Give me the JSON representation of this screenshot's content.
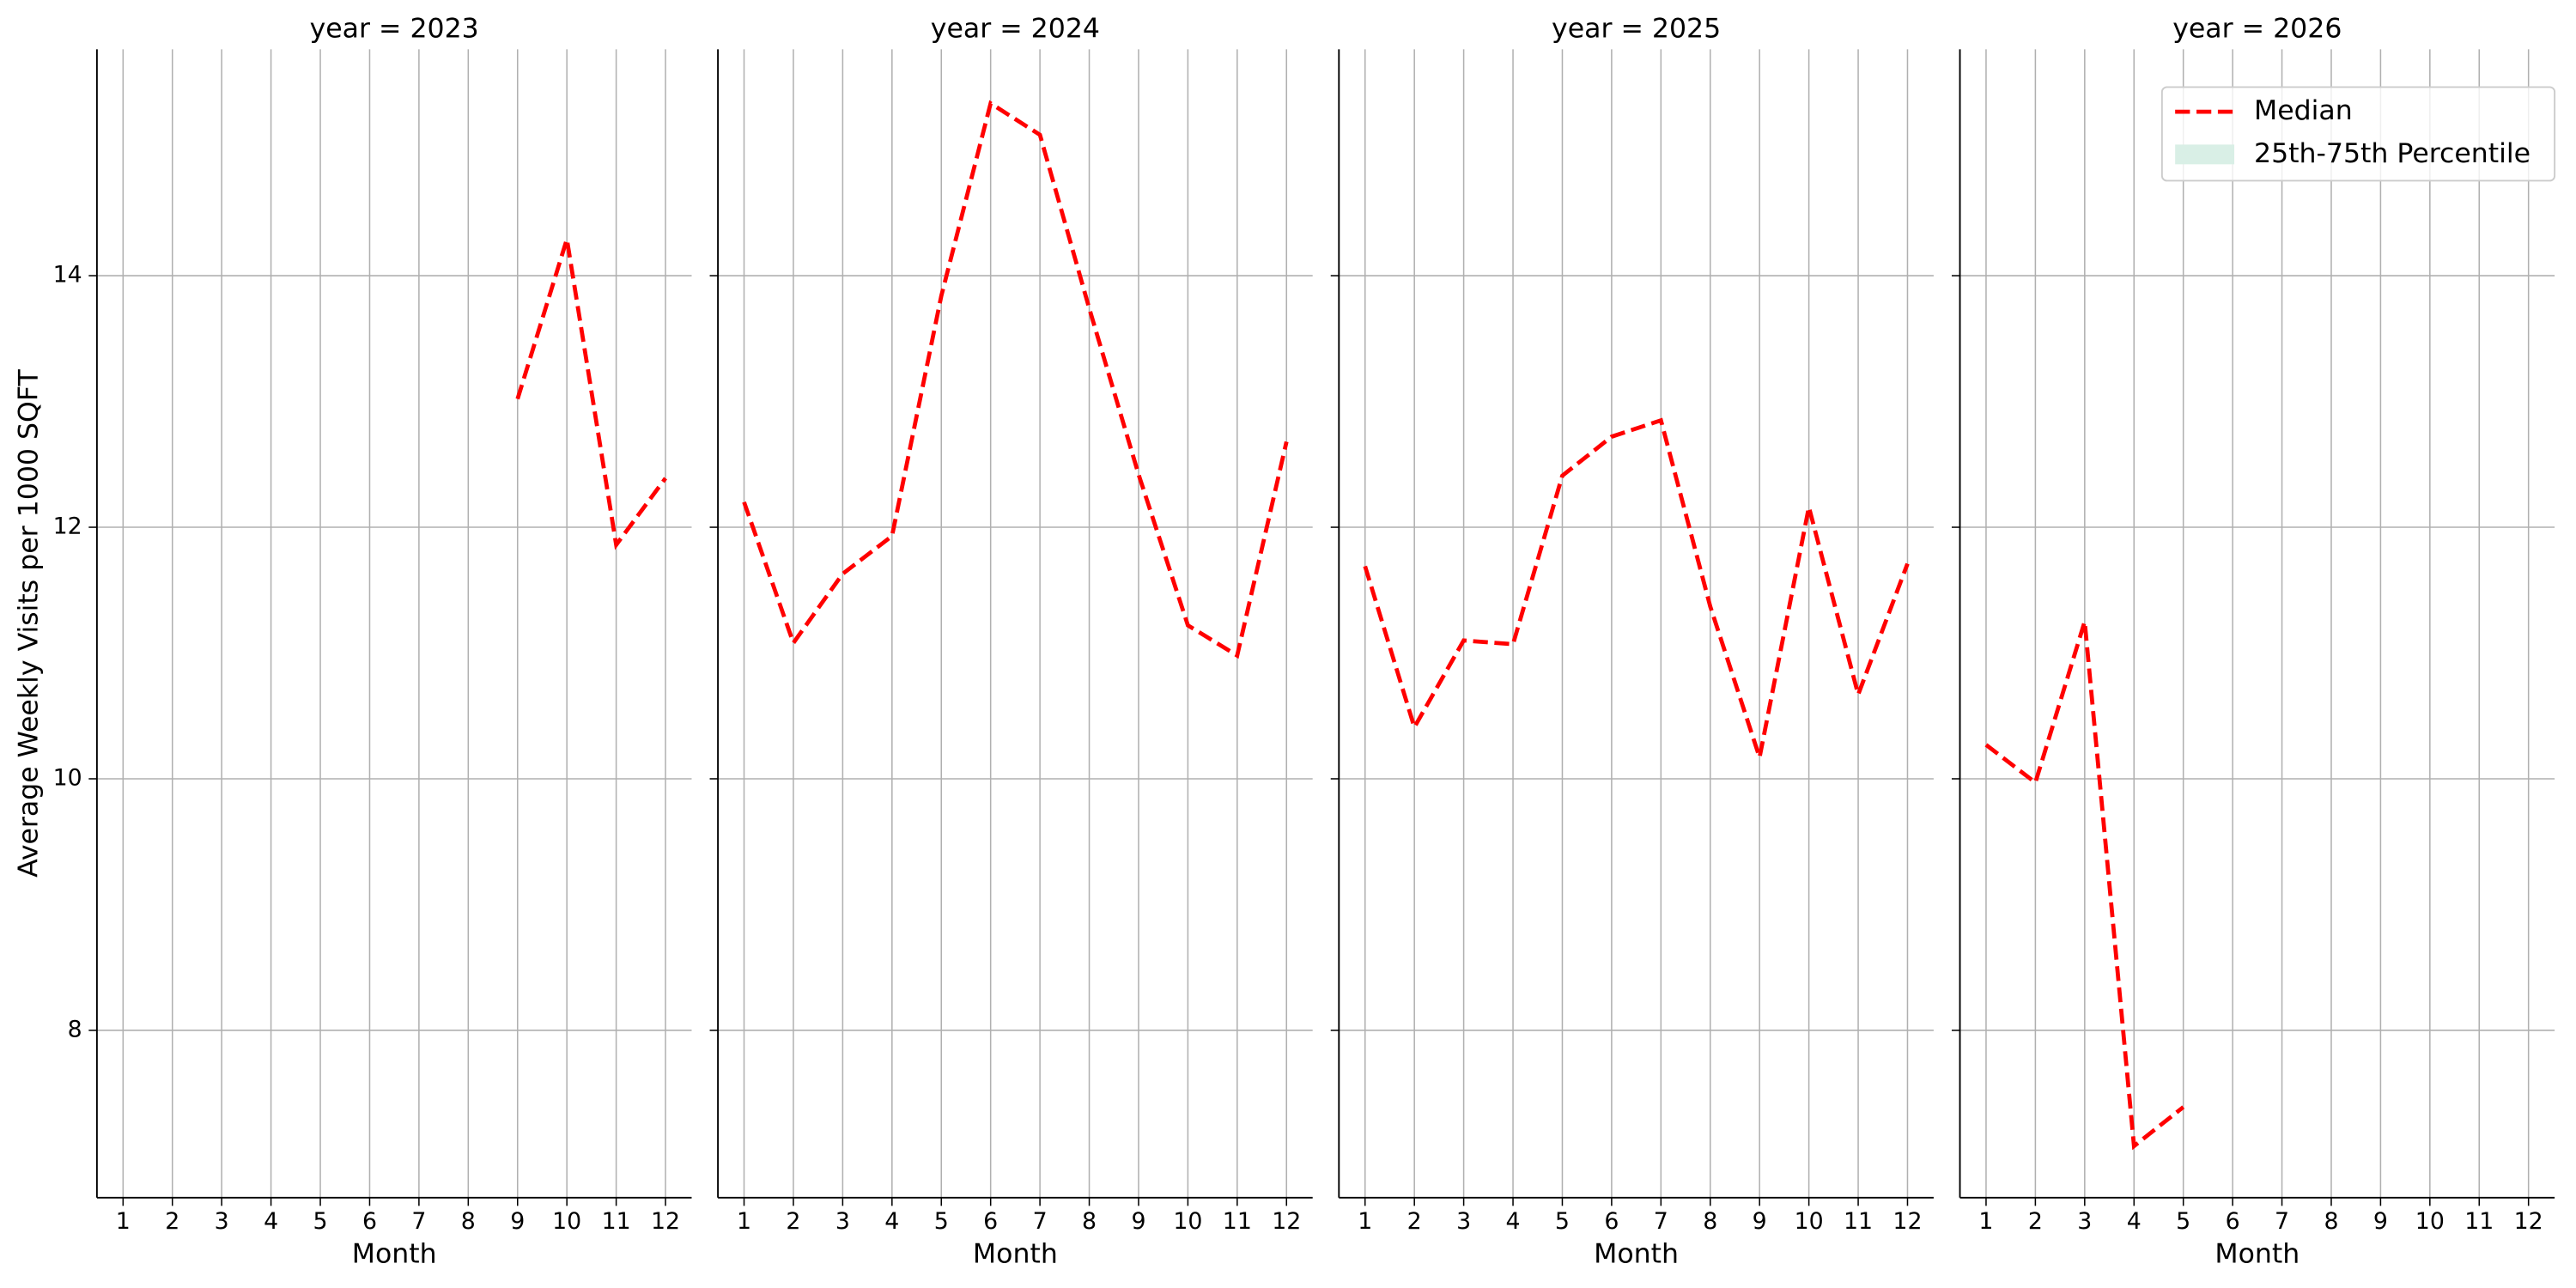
{
  "chart_data": [
    {
      "type": "line",
      "title": "year = 2023",
      "xlabel": "Month",
      "ylabel": "Average Weekly Visits per 1000 SQFT",
      "x": [
        1,
        2,
        3,
        4,
        5,
        6,
        7,
        8,
        9,
        10,
        11,
        12
      ],
      "series": [
        {
          "name": "Median",
          "color": "#ff0000",
          "values": [
            null,
            null,
            null,
            null,
            null,
            null,
            null,
            null,
            13.02,
            14.29,
            11.86,
            12.39
          ]
        }
      ],
      "xlim": [
        0.47,
        12.53
      ],
      "xticks": [
        1,
        2,
        3,
        4,
        5,
        6,
        7,
        8,
        9,
        10,
        11,
        12
      ],
      "ylim": [
        6.67,
        15.8
      ],
      "yticks": [
        8,
        10,
        12,
        14
      ],
      "grid": true
    },
    {
      "type": "line",
      "title": "year = 2024",
      "xlabel": "Month",
      "x": [
        1,
        2,
        3,
        4,
        5,
        6,
        7,
        8,
        9,
        10,
        11,
        12
      ],
      "series": [
        {
          "name": "Median",
          "color": "#ff0000",
          "values": [
            12.2,
            11.08,
            11.63,
            11.93,
            13.84,
            15.37,
            15.12,
            13.74,
            12.42,
            11.22,
            10.98,
            12.68
          ]
        }
      ],
      "xlim": [
        0.47,
        12.53
      ],
      "xticks": [
        1,
        2,
        3,
        4,
        5,
        6,
        7,
        8,
        9,
        10,
        11,
        12
      ],
      "ylim": [
        6.67,
        15.8
      ],
      "yticks": [
        8,
        10,
        12,
        14
      ],
      "grid": true
    },
    {
      "type": "line",
      "title": "year = 2025",
      "xlabel": "Month",
      "x": [
        1,
        2,
        3,
        4,
        5,
        6,
        7,
        8,
        9,
        10,
        11,
        12
      ],
      "series": [
        {
          "name": "Median",
          "color": "#ff0000",
          "values": [
            11.69,
            10.41,
            11.1,
            11.07,
            12.41,
            12.72,
            12.85,
            11.37,
            10.17,
            12.16,
            10.67,
            11.71
          ]
        }
      ],
      "xlim": [
        0.47,
        12.53
      ],
      "xticks": [
        1,
        2,
        3,
        4,
        5,
        6,
        7,
        8,
        9,
        10,
        11,
        12
      ],
      "ylim": [
        6.67,
        15.8
      ],
      "yticks": [
        8,
        10,
        12,
        14
      ],
      "grid": true
    },
    {
      "type": "line",
      "title": "year = 2026",
      "xlabel": "Month",
      "x": [
        1,
        2,
        3,
        4,
        5,
        6,
        7,
        8,
        9,
        10,
        11,
        12
      ],
      "series": [
        {
          "name": "Median",
          "color": "#ff0000",
          "values": [
            10.27,
            9.97,
            11.25,
            7.08,
            7.39,
            null,
            null,
            null,
            null,
            null,
            null,
            null
          ]
        }
      ],
      "legend_items": [
        {
          "name": "Median",
          "color": "#ff0000"
        },
        {
          "name": "25th-75th Percentile",
          "color": "#d9efe6"
        }
      ],
      "legend": "upper right",
      "xlim": [
        0.47,
        12.53
      ],
      "xticks": [
        1,
        2,
        3,
        4,
        5,
        6,
        7,
        8,
        9,
        10,
        11,
        12
      ],
      "ylim": [
        6.67,
        15.8
      ],
      "yticks": [
        8,
        10,
        12,
        14
      ],
      "grid": true
    }
  ]
}
